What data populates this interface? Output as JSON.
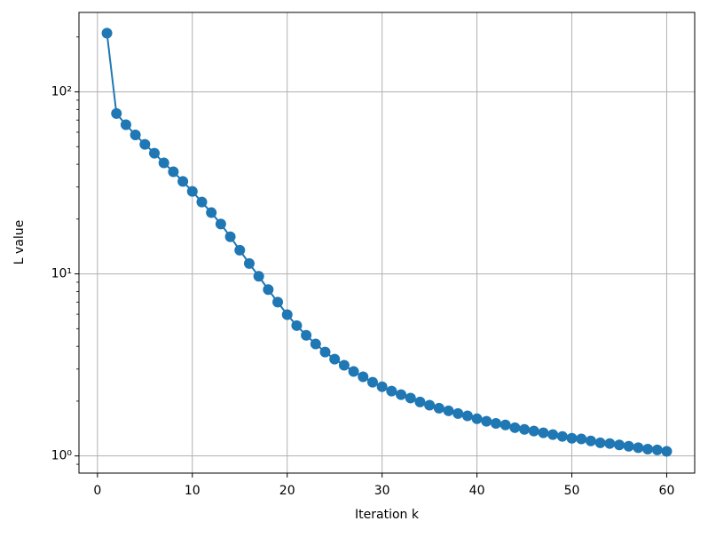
{
  "chart_data": {
    "type": "line",
    "xlabel": "Iteration k",
    "ylabel": "L value",
    "x": [
      1,
      2,
      3,
      4,
      5,
      6,
      7,
      8,
      9,
      10,
      11,
      12,
      13,
      14,
      15,
      16,
      17,
      18,
      19,
      20,
      21,
      22,
      23,
      24,
      25,
      26,
      27,
      28,
      29,
      30,
      31,
      32,
      33,
      34,
      35,
      36,
      37,
      38,
      39,
      40,
      41,
      42,
      43,
      44,
      45,
      46,
      47,
      48,
      49,
      50,
      51,
      52,
      53,
      54,
      55,
      56,
      57,
      58,
      59,
      60
    ],
    "series": [
      {
        "color": "#1f77b4",
        "values": [
          210,
          76,
          66,
          58,
          51.5,
          46,
          40.7,
          36.4,
          32.2,
          28.4,
          24.8,
          21.7,
          18.8,
          16.0,
          13.5,
          11.4,
          9.7,
          8.2,
          7.0,
          5.97,
          5.2,
          4.6,
          4.12,
          3.72,
          3.4,
          3.15,
          2.91,
          2.72,
          2.54,
          2.4,
          2.27,
          2.17,
          2.08,
          1.98,
          1.9,
          1.83,
          1.77,
          1.71,
          1.66,
          1.6,
          1.55,
          1.51,
          1.48,
          1.43,
          1.4,
          1.37,
          1.34,
          1.31,
          1.28,
          1.25,
          1.24,
          1.21,
          1.18,
          1.17,
          1.15,
          1.13,
          1.11,
          1.09,
          1.08,
          1.06
        ]
      }
    ],
    "xlim": [
      -1.95,
      62.95
    ],
    "xticks": [
      0,
      10,
      20,
      30,
      40,
      50,
      60
    ],
    "ylim": [
      0.805,
      273
    ],
    "yscale": "log",
    "yticks": [
      {
        "value": 1,
        "label": "10⁰"
      },
      {
        "value": 10,
        "label": "10¹"
      },
      {
        "value": 100,
        "label": "10²"
      }
    ],
    "yminorticks": [
      0.9,
      2,
      3,
      4,
      5,
      6,
      7,
      8,
      9,
      20,
      30,
      40,
      50,
      60,
      70,
      80,
      90,
      200
    ],
    "grid": true
  }
}
